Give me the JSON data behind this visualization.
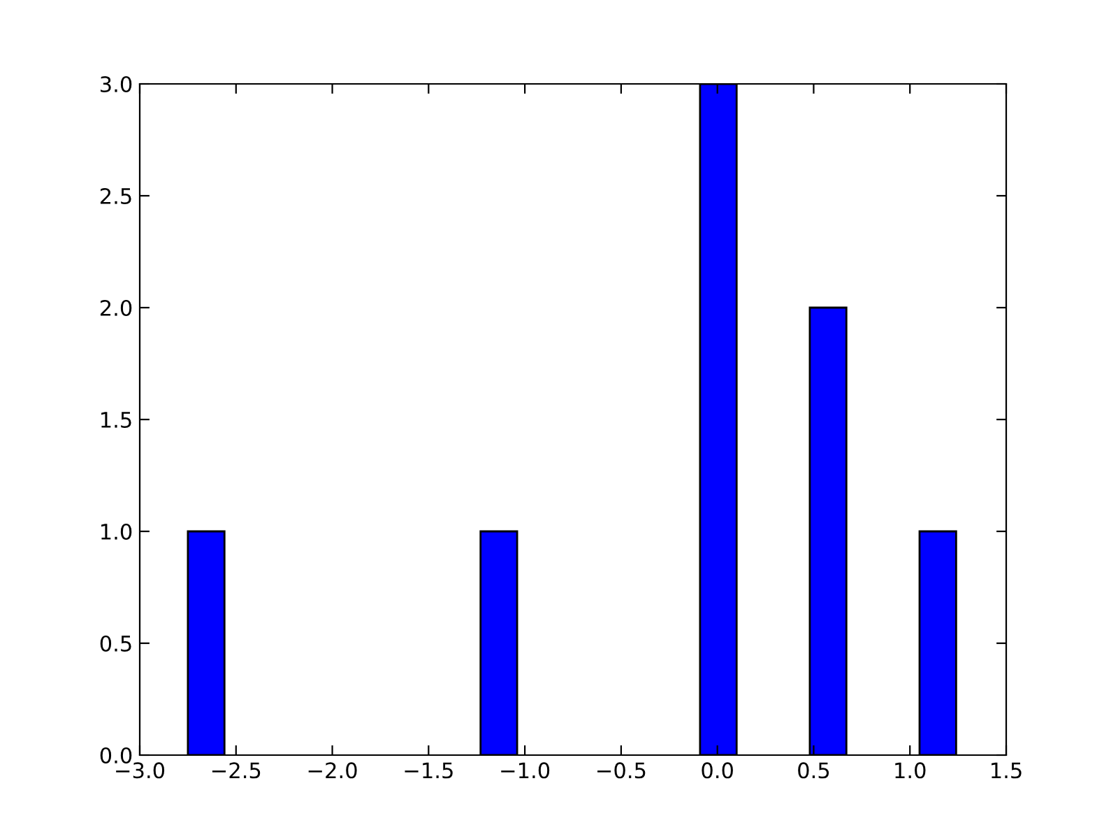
{
  "chart_data": {
    "type": "histogram",
    "bins": [
      -2.75,
      -2.56,
      -2.37,
      -2.18,
      -1.99,
      -1.8,
      -1.61,
      -1.42,
      -1.23,
      -1.04,
      -0.85,
      -0.66,
      -0.47,
      -0.28,
      -0.09,
      0.1,
      0.29,
      0.48,
      0.67,
      0.86,
      1.05,
      1.24
    ],
    "values": [
      1,
      0,
      0,
      0,
      0,
      0,
      0,
      0,
      1,
      0,
      0,
      0,
      0,
      0,
      3,
      0,
      0,
      2,
      0,
      0,
      1
    ],
    "color": "#0000ff",
    "xlim": [
      -3.0,
      1.5
    ],
    "xticks": [
      {
        "value": -3.0,
        "label": "−3.0"
      },
      {
        "value": -2.5,
        "label": "−2.5"
      },
      {
        "value": -2.0,
        "label": "−2.0"
      },
      {
        "value": -1.5,
        "label": "−1.5"
      },
      {
        "value": -1.0,
        "label": "−1.0"
      },
      {
        "value": -0.5,
        "label": "−0.5"
      },
      {
        "value": 0,
        "label": "0.0"
      },
      {
        "value": 0.5,
        "label": "0.5"
      },
      {
        "value": 1.0,
        "label": "1.0"
      },
      {
        "value": 1.5,
        "label": "1.5"
      }
    ],
    "ylim": [
      0,
      3.0
    ],
    "yticks": [
      {
        "value": 0,
        "label": "0.0"
      },
      {
        "value": 0.5,
        "label": "0.5"
      },
      {
        "value": 1.0,
        "label": "1.0"
      },
      {
        "value": 1.5,
        "label": "1.5"
      },
      {
        "value": 2.0,
        "label": "2.0"
      },
      {
        "value": 2.5,
        "label": "2.5"
      },
      {
        "value": 3.0,
        "label": "3.0"
      }
    ],
    "grid": false
  }
}
